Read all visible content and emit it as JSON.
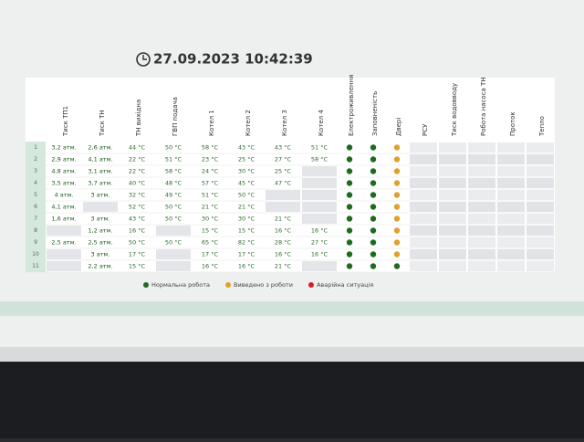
{
  "header": {
    "datetime": "27.09.2023 10:42:39"
  },
  "columns": {
    "readings": [
      "Тиск ТП1",
      "Тиск ТН",
      "ТН вихідна",
      "ГВП подача",
      "Котел 1",
      "Котел 2",
      "Котел 3",
      "Котел 4"
    ],
    "statuses": [
      "Електроживлення",
      "Заповненість",
      "Двері"
    ],
    "extra": [
      "РСУ",
      "Тиск водовводу",
      "Робота насоса ТН",
      "Проток",
      "Тепло"
    ]
  },
  "legend": [
    {
      "label": "Нормальна робота",
      "color": "#1e6b1e"
    },
    {
      "label": "Виведено з роботи",
      "color": "#e0a030"
    },
    {
      "label": "Аварійна ситуація",
      "color": "#d52020"
    }
  ],
  "table": {
    "rows": [
      {
        "n": "1",
        "readings": [
          "3,2 атм.",
          "2,6 атм.",
          "44 °C",
          "50 °C",
          "58 °C",
          "43 °C",
          "43 °C",
          "51 °C"
        ],
        "status": [
          0,
          0,
          1
        ]
      },
      {
        "n": "2",
        "readings": [
          "2,9 атм.",
          "4,1 атм.",
          "22 °C",
          "51 °C",
          "23 °C",
          "25 °C",
          "27 °C",
          "58 °C"
        ],
        "status": [
          0,
          0,
          1
        ]
      },
      {
        "n": "3",
        "readings": [
          "4,8 атм.",
          "3,1 атм.",
          "22 °C",
          "58 °C",
          "24 °C",
          "30 °C",
          "25 °C",
          null
        ],
        "status": [
          0,
          0,
          1
        ]
      },
      {
        "n": "4",
        "readings": [
          "3,5 атм.",
          "3,7 атм.",
          "40 °C",
          "48 °C",
          "57 °C",
          "45 °C",
          "47 °C",
          null
        ],
        "status": [
          0,
          0,
          1
        ]
      },
      {
        "n": "5",
        "readings": [
          "4 атм.",
          "3 атм.",
          "32 °C",
          "49 °C",
          "51 °C",
          "50 °C",
          null,
          null
        ],
        "status": [
          0,
          0,
          1
        ]
      },
      {
        "n": "6",
        "readings": [
          "4,1 атм.",
          null,
          "52 °C",
          "50 °C",
          "21 °C",
          "21 °C",
          null,
          null
        ],
        "status": [
          0,
          0,
          1
        ]
      },
      {
        "n": "7",
        "readings": [
          "1,6 атм.",
          "3 атм.",
          "43 °C",
          "50 °C",
          "30 °C",
          "30 °C",
          "21 °C",
          null
        ],
        "status": [
          0,
          0,
          1
        ]
      },
      {
        "n": "8",
        "readings": [
          null,
          "1,2 атм.",
          "16 °C",
          null,
          "15 °C",
          "15 °C",
          "16 °C",
          "16 °C"
        ],
        "status": [
          0,
          0,
          1
        ]
      },
      {
        "n": "9",
        "readings": [
          "2,5 атм.",
          "2,5 атм.",
          "50 °C",
          "50 °C",
          "65 °C",
          "82 °C",
          "28 °C",
          "27 °C"
        ],
        "status": [
          0,
          0,
          1
        ]
      },
      {
        "n": "10",
        "readings": [
          null,
          "3 атм.",
          "17 °C",
          null,
          "17 °C",
          "17 °C",
          "16 °C",
          "16 °C"
        ],
        "status": [
          0,
          0,
          1
        ]
      },
      {
        "n": "11",
        "readings": [
          null,
          "2,2 атм.",
          "15 °C",
          null,
          "16 °C",
          "16 °C",
          "21 °C",
          null
        ],
        "status": [
          0,
          0,
          0
        ]
      }
    ]
  }
}
